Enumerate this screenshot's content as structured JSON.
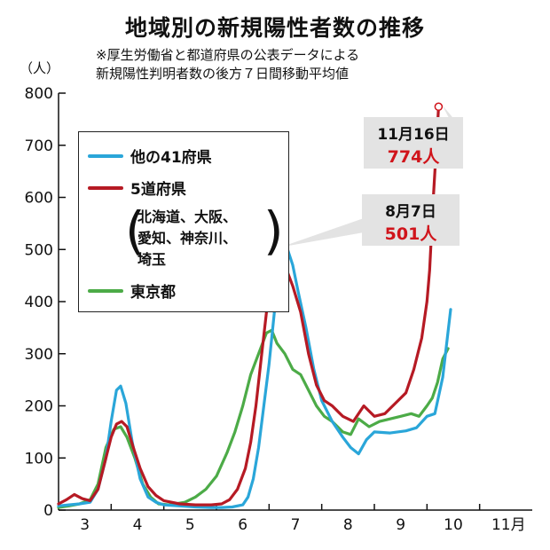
{
  "title": "地域別の新規陽性者数の推移",
  "note": [
    "※厚生労働省と都道府県の公表データによる",
    "新規陽性判明者数の後方７日間移動平均値"
  ],
  "unit": "（人）",
  "chart_data": {
    "type": "line",
    "ylim": [
      0,
      800
    ],
    "yticks": [
      "0",
      "100",
      "200",
      "300",
      "400",
      "500",
      "600",
      "700",
      "800"
    ],
    "x_tick_labels": [
      "3",
      "4",
      "5",
      "6",
      "7",
      "8",
      "9",
      "10",
      "11月"
    ],
    "x_tick_positions": [
      3.5,
      4.5,
      5.5,
      6.5,
      7.5,
      8.5,
      9.5,
      10.5,
      11.55
    ],
    "xlim": [
      3.0,
      12.0
    ],
    "series": [
      {
        "name": "他の41府県",
        "color": "#2aa6d9",
        "points": [
          [
            3.0,
            8
          ],
          [
            3.2,
            10
          ],
          [
            3.4,
            12
          ],
          [
            3.6,
            15
          ],
          [
            3.75,
            40
          ],
          [
            3.9,
            100
          ],
          [
            4.0,
            170
          ],
          [
            4.1,
            230
          ],
          [
            4.18,
            238
          ],
          [
            4.28,
            205
          ],
          [
            4.4,
            130
          ],
          [
            4.55,
            60
          ],
          [
            4.7,
            25
          ],
          [
            4.85,
            15
          ],
          [
            5.0,
            10
          ],
          [
            5.3,
            8
          ],
          [
            5.6,
            6
          ],
          [
            5.9,
            5
          ],
          [
            6.1,
            5
          ],
          [
            6.3,
            6
          ],
          [
            6.5,
            10
          ],
          [
            6.6,
            25
          ],
          [
            6.7,
            60
          ],
          [
            6.8,
            120
          ],
          [
            6.9,
            200
          ],
          [
            7.0,
            280
          ],
          [
            7.1,
            380
          ],
          [
            7.2,
            470
          ],
          [
            7.25,
            545
          ],
          [
            7.32,
            510
          ],
          [
            7.45,
            470
          ],
          [
            7.55,
            420
          ],
          [
            7.7,
            350
          ],
          [
            7.85,
            270
          ],
          [
            8.0,
            210
          ],
          [
            8.2,
            170
          ],
          [
            8.4,
            140
          ],
          [
            8.55,
            120
          ],
          [
            8.7,
            108
          ],
          [
            8.85,
            135
          ],
          [
            9.0,
            150
          ],
          [
            9.3,
            148
          ],
          [
            9.6,
            152
          ],
          [
            9.8,
            158
          ],
          [
            10.0,
            180
          ],
          [
            10.15,
            185
          ],
          [
            10.3,
            255
          ],
          [
            10.45,
            385
          ]
        ]
      },
      {
        "name": "5道府県",
        "color": "#b61a24",
        "points": [
          [
            3.0,
            12
          ],
          [
            3.15,
            20
          ],
          [
            3.3,
            30
          ],
          [
            3.45,
            22
          ],
          [
            3.6,
            18
          ],
          [
            3.75,
            40
          ],
          [
            3.9,
            100
          ],
          [
            4.0,
            140
          ],
          [
            4.1,
            165
          ],
          [
            4.2,
            170
          ],
          [
            4.3,
            160
          ],
          [
            4.42,
            120
          ],
          [
            4.55,
            80
          ],
          [
            4.7,
            45
          ],
          [
            4.85,
            28
          ],
          [
            5.0,
            18
          ],
          [
            5.3,
            12
          ],
          [
            5.6,
            10
          ],
          [
            5.9,
            10
          ],
          [
            6.1,
            12
          ],
          [
            6.25,
            20
          ],
          [
            6.4,
            40
          ],
          [
            6.55,
            80
          ],
          [
            6.65,
            130
          ],
          [
            6.75,
            200
          ],
          [
            6.85,
            290
          ],
          [
            6.95,
            380
          ],
          [
            7.05,
            460
          ],
          [
            7.15,
            501
          ],
          [
            7.22,
            495
          ],
          [
            7.3,
            470
          ],
          [
            7.45,
            430
          ],
          [
            7.6,
            380
          ],
          [
            7.75,
            300
          ],
          [
            7.9,
            240
          ],
          [
            8.05,
            210
          ],
          [
            8.2,
            200
          ],
          [
            8.4,
            180
          ],
          [
            8.6,
            170
          ],
          [
            8.8,
            200
          ],
          [
            9.0,
            180
          ],
          [
            9.2,
            185
          ],
          [
            9.45,
            210
          ],
          [
            9.6,
            225
          ],
          [
            9.75,
            270
          ],
          [
            9.9,
            330
          ],
          [
            10.0,
            400
          ],
          [
            10.05,
            460
          ],
          [
            10.12,
            600
          ],
          [
            10.18,
            700
          ],
          [
            10.22,
            774
          ]
        ]
      },
      {
        "name": "東京都",
        "color": "#4cab47",
        "points": [
          [
            3.0,
            5
          ],
          [
            3.2,
            8
          ],
          [
            3.4,
            12
          ],
          [
            3.6,
            20
          ],
          [
            3.75,
            50
          ],
          [
            3.9,
            120
          ],
          [
            4.05,
            155
          ],
          [
            4.18,
            160
          ],
          [
            4.3,
            140
          ],
          [
            4.45,
            100
          ],
          [
            4.6,
            50
          ],
          [
            4.75,
            25
          ],
          [
            4.9,
            12
          ],
          [
            5.1,
            10
          ],
          [
            5.4,
            15
          ],
          [
            5.6,
            25
          ],
          [
            5.8,
            40
          ],
          [
            6.0,
            65
          ],
          [
            6.2,
            110
          ],
          [
            6.35,
            150
          ],
          [
            6.5,
            200
          ],
          [
            6.65,
            260
          ],
          [
            6.8,
            300
          ],
          [
            6.95,
            340
          ],
          [
            7.05,
            345
          ],
          [
            7.15,
            320
          ],
          [
            7.3,
            300
          ],
          [
            7.45,
            270
          ],
          [
            7.6,
            260
          ],
          [
            7.75,
            230
          ],
          [
            7.9,
            200
          ],
          [
            8.05,
            180
          ],
          [
            8.2,
            170
          ],
          [
            8.4,
            150
          ],
          [
            8.55,
            145
          ],
          [
            8.7,
            175
          ],
          [
            8.9,
            160
          ],
          [
            9.1,
            170
          ],
          [
            9.3,
            175
          ],
          [
            9.5,
            180
          ],
          [
            9.7,
            185
          ],
          [
            9.85,
            180
          ],
          [
            10.0,
            200
          ],
          [
            10.1,
            215
          ],
          [
            10.2,
            245
          ],
          [
            10.3,
            290
          ],
          [
            10.4,
            310
          ]
        ]
      }
    ],
    "annotations": [
      {
        "date": "8月7日",
        "value": "501",
        "unit": "人",
        "x": 7.15,
        "y": 501
      },
      {
        "date": "11月16日",
        "value": "774",
        "unit": "人",
        "x": 10.22,
        "y": 774
      }
    ]
  },
  "legend": {
    "items": [
      "他の41府県",
      "5道府県",
      "東京都"
    ],
    "sub_lines": [
      "北海道、大阪、",
      "愛知、神奈川、",
      "埼玉"
    ]
  }
}
